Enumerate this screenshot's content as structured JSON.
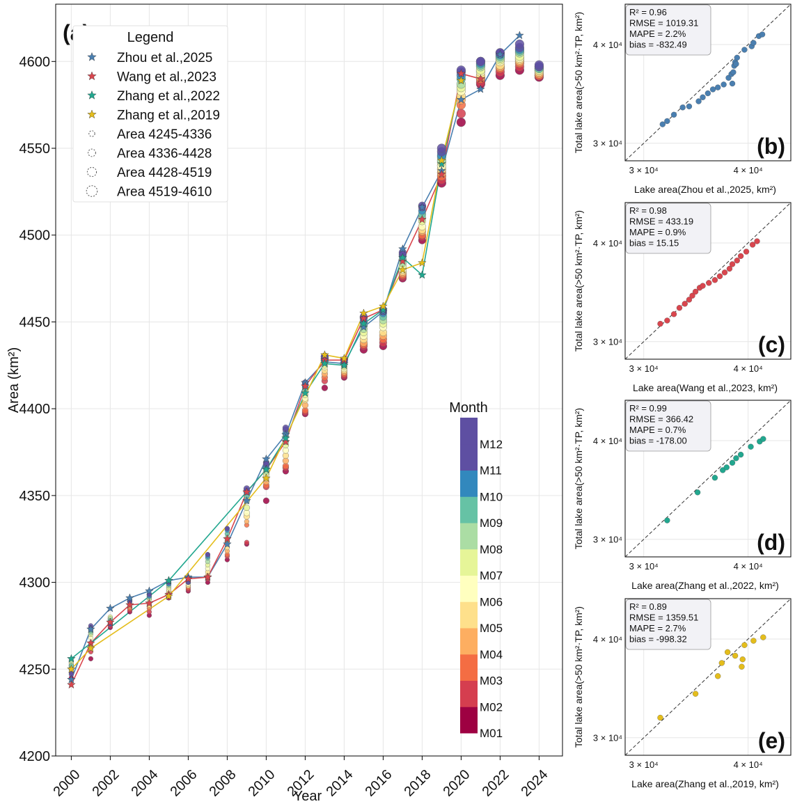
{
  "colors": {
    "zhou2025": "#4a7fb0",
    "wang2023": "#d9464e",
    "zhang2022": "#22a78f",
    "zhang2019": "#e4bd1c",
    "grid": "#e6e6e6",
    "month_colormap": [
      "#9e0142",
      "#d53e4f",
      "#f46d43",
      "#fdae61",
      "#fee08b",
      "#ffffbf",
      "#e6f598",
      "#abdda4",
      "#66c2a5",
      "#3288bd",
      "#5e4fa2",
      "#5e4fa2"
    ]
  },
  "main_panel": {
    "tag": "(a)",
    "xlabel": "Year",
    "ylabel": "Area (km²)",
    "legend": {
      "title": "Legend",
      "entries": [
        {
          "label": "Zhou et al.,2025",
          "marker": "star",
          "color_key": "zhou2025"
        },
        {
          "label": "Wang et al.,2023",
          "marker": "star",
          "color_key": "wang2023"
        },
        {
          "label": "Zhang et al.,2022",
          "marker": "star",
          "color_key": "zhang2022"
        },
        {
          "label": "Zhang et al.,2019",
          "marker": "star",
          "color_key": "zhang2019"
        },
        {
          "label": "Area 4245-4336",
          "marker": "circle-dashed",
          "size": 1
        },
        {
          "label": "Area 4336-4428",
          "marker": "circle-dashed",
          "size": 2
        },
        {
          "label": "Area 4428-4519",
          "marker": "circle-dashed",
          "size": 3
        },
        {
          "label": "Area 4519-4610",
          "marker": "circle-dashed",
          "size": 4
        }
      ]
    },
    "colorbar": {
      "title": "Month",
      "labels": [
        "M01",
        "M02",
        "M03",
        "M04",
        "M05",
        "M06",
        "M07",
        "M08",
        "M09",
        "M10",
        "M11",
        "M12"
      ]
    }
  },
  "chart_data": [
    {
      "type": "line",
      "panel": "(a)",
      "xlabel": "Year",
      "ylabel": "Area (km²)",
      "xlim": [
        1999.2,
        2025.2
      ],
      "ylim": [
        4200,
        4633
      ],
      "xticks": [
        2000,
        2002,
        2004,
        2006,
        2008,
        2010,
        2012,
        2014,
        2016,
        2018,
        2020,
        2022,
        2024
      ],
      "yticks": [
        4200,
        4250,
        4300,
        4350,
        4400,
        4450,
        4500,
        4550,
        4600
      ],
      "grid": true,
      "legend_position": "top-left",
      "series": [
        {
          "name": "Zhou et al.,2025",
          "color_key": "zhou2025",
          "x": [
            2000,
            2001,
            2002,
            2003,
            2004,
            2005,
            2006,
            2007,
            2008,
            2009,
            2010,
            2011,
            2012,
            2013,
            2014,
            2015,
            2016,
            2017,
            2018,
            2019,
            2020,
            2021,
            2022,
            2023
          ],
          "y": [
            4244,
            4273,
            4285,
            4291,
            4295,
            4301,
            4303,
            4303,
            4322,
            4347,
            4371,
            4385,
            4415,
            4427,
            4426,
            4447,
            4456,
            4492,
            4516,
            4537,
            4578,
            4584,
            4604,
            4615
          ]
        },
        {
          "name": "Wang et al.,2023",
          "color_key": "wang2023",
          "x": [
            2000,
            2001,
            2002,
            2003,
            2004,
            2005,
            2006,
            2007,
            2008,
            2009,
            2010,
            2011,
            2012,
            2013,
            2014,
            2015,
            2016,
            2017,
            2018,
            2019,
            2020,
            2021
          ],
          "y": [
            4241,
            4265,
            4277,
            4287,
            4288,
            4293,
            4302,
            4303,
            4325,
            4352,
            4365,
            4381,
            4413,
            4428,
            4428,
            4452,
            4457,
            4485,
            4509,
            4535,
            4593,
            4590
          ]
        },
        {
          "name": "Zhang et al.,2022",
          "color_key": "zhang2022",
          "x": [
            2000,
            2005,
            2010,
            2011,
            2012,
            2013,
            2014,
            2015,
            2016,
            2017,
            2018,
            2019,
            2020
          ],
          "y": [
            4256,
            4301,
            4365,
            4383,
            4409,
            4426,
            4425,
            4449,
            4457,
            4487,
            4477,
            4541,
            4589
          ]
        },
        {
          "name": "Zhang et al.,2019",
          "color_key": "zhang2019",
          "x": [
            2000,
            2001,
            2005,
            2010,
            2013,
            2014,
            2015,
            2016,
            2017,
            2018,
            2019,
            2020
          ],
          "y": [
            4250,
            4262,
            4292,
            4360,
            4431,
            4429,
            4455,
            4459,
            4480,
            4484,
            4543,
            4589
          ]
        }
      ],
      "monthly_points": [
        {
          "x": 2000,
          "y": [
            4245,
            4248,
            4250,
            4251,
            4252,
            4253,
            4254,
            4255,
            4252,
            4250,
            4248,
            4247
          ]
        },
        {
          "x": 2001,
          "y": [
            4256,
            4260,
            4262,
            4263,
            4265,
            4268,
            4270,
            4271,
            4272,
            4273,
            4274,
            4275
          ]
        },
        {
          "x": 2002,
          "y": [
            4274,
            4275,
            4276,
            4277,
            4278,
            4279,
            4280,
            4279,
            4278,
            4277,
            4276,
            4276
          ]
        },
        {
          "x": 2003,
          "y": [
            4283,
            4284,
            4285,
            4286,
            4287,
            4288,
            4289,
            4289,
            4290,
            4290,
            4289,
            4289
          ]
        },
        {
          "x": 2004,
          "y": [
            4281,
            4283,
            4285,
            4286,
            4287,
            4288,
            4290,
            4291,
            4292,
            4292,
            4293,
            4293
          ]
        },
        {
          "x": 2005,
          "y": [
            4291,
            4292,
            4293,
            4294,
            4295,
            4296,
            4297,
            4298,
            4299,
            4299,
            4300,
            4300
          ]
        },
        {
          "x": 2006,
          "y": [
            4295,
            4296,
            4297,
            4298,
            4298,
            4299,
            4300,
            4300,
            4300,
            4300,
            4300,
            4301
          ]
        },
        {
          "x": 2007,
          "y": [
            4300,
            4302,
            4303,
            4304,
            4306,
            4308,
            4310,
            4312,
            4314,
            4315,
            4316,
            4316
          ]
        },
        {
          "x": 2008,
          "y": [
            4313,
            4315,
            4316,
            4318,
            4320,
            4322,
            4324,
            4326,
            4328,
            4330,
            4331,
            4331
          ]
        },
        {
          "x": 2009,
          "y": [
            4322,
            4323,
            4333,
            4335,
            4338,
            4340,
            4343,
            4347,
            4350,
            4352,
            4353,
            4354
          ]
        },
        {
          "x": 2010,
          "y": [
            4347,
            4355,
            4356,
            4358,
            4360,
            4362,
            4363,
            4364,
            4366,
            4367,
            4368,
            4369
          ]
        },
        {
          "x": 2011,
          "y": [
            4364,
            4366,
            4367,
            4370,
            4373,
            4376,
            4379,
            4381,
            4384,
            4386,
            4388,
            4389
          ]
        },
        {
          "x": 2012,
          "y": [
            4397,
            4398,
            4399,
            4402,
            4405,
            4406,
            4408,
            4410,
            4412,
            4413,
            4414,
            4415
          ]
        },
        {
          "x": 2013,
          "y": [
            4412,
            4416,
            4418,
            4420,
            4422,
            4424,
            4425,
            4427,
            4428,
            4429,
            4430,
            4430
          ]
        },
        {
          "x": 2014,
          "y": [
            4418,
            4419,
            4420,
            4421,
            4422,
            4423,
            4424,
            4425,
            4426,
            4427,
            4427,
            4428
          ]
        },
        {
          "x": 2015,
          "y": [
            4434,
            4436,
            4437,
            4438,
            4440,
            4442,
            4444,
            4446,
            4448,
            4450,
            4452,
            4453
          ]
        },
        {
          "x": 2016,
          "y": [
            4436,
            4438,
            4440,
            4442,
            4444,
            4447,
            4449,
            4451,
            4453,
            4455,
            4456,
            4457
          ]
        },
        {
          "x": 2017,
          "y": [
            4475,
            4476,
            4477,
            4478,
            4479,
            4480,
            4482,
            4484,
            4486,
            4488,
            4489,
            4490
          ]
        },
        {
          "x": 2018,
          "y": [
            4497,
            4499,
            4500,
            4502,
            4503,
            4505,
            4508,
            4510,
            4512,
            4514,
            4516,
            4517
          ]
        },
        {
          "x": 2019,
          "y": [
            4530,
            4532,
            4534,
            4536,
            4538,
            4540,
            4542,
            4543,
            4545,
            4546,
            4548,
            4550
          ]
        },
        {
          "x": 2020,
          "y": [
            4565,
            4570,
            4575,
            4578,
            4580,
            4583,
            4585,
            4587,
            4590,
            4592,
            4594,
            4595
          ]
        },
        {
          "x": 2021,
          "y": [
            4587,
            4588,
            4590,
            4591,
            4592,
            4594,
            4595,
            4597,
            4598,
            4599,
            4600,
            4600
          ]
        },
        {
          "x": 2022,
          "y": [
            4592,
            4594,
            4596,
            4597,
            4598,
            4600,
            4601,
            4602,
            4603,
            4604,
            4605,
            4605
          ]
        },
        {
          "x": 2023,
          "y": [
            4595,
            4597,
            4599,
            4600,
            4601,
            4602,
            4603,
            4605,
            4606,
            4607,
            4608,
            4610
          ]
        },
        {
          "x": 2024,
          "y": [
            4591,
            4592,
            4592,
            4593,
            4594,
            4595,
            4595,
            4596,
            4596,
            4597,
            4597,
            4598
          ]
        }
      ]
    },
    {
      "type": "scatter",
      "panel": "(b)",
      "color_key": "zhou2025",
      "xlabel": "Lake area(Zhou et al.,2025, km²)",
      "ylabel": "Total lake area(>50 km²·TP, km²)",
      "tick_labels": [
        "3 × 10⁴",
        "4 × 10⁴"
      ],
      "stats": [
        "R² = 0.96",
        "RMSE = 1019.31",
        "MAPE = 2.2%",
        "bias = -832.49"
      ],
      "points": [
        [
          31600,
          31700
        ],
        [
          32000,
          32000
        ],
        [
          32600,
          32600
        ],
        [
          33400,
          33300
        ],
        [
          34000,
          33400
        ],
        [
          34900,
          33900
        ],
        [
          35300,
          34300
        ],
        [
          35800,
          34700
        ],
        [
          36300,
          35100
        ],
        [
          36800,
          35300
        ],
        [
          37400,
          35600
        ],
        [
          37900,
          36300
        ],
        [
          38200,
          36700
        ],
        [
          38400,
          36900
        ],
        [
          38500,
          37600
        ],
        [
          38600,
          38000
        ],
        [
          38800,
          38500
        ],
        [
          39600,
          39400
        ],
        [
          40400,
          39800
        ],
        [
          40600,
          40200
        ],
        [
          41200,
          41000
        ],
        [
          41600,
          41200
        ],
        [
          38700,
          37800
        ],
        [
          38300,
          35700
        ]
      ]
    },
    {
      "type": "scatter",
      "panel": "(c)",
      "color_key": "wang2023",
      "xlabel": "Lake area(Wang et al.,2023, km²)",
      "ylabel": "Total lake area(>50 km²·TP, km²)",
      "tick_labels": [
        "3 × 10⁴",
        "4 × 10⁴"
      ],
      "stats": [
        "R² = 0.98",
        "RMSE = 433.19",
        "MAPE = 0.9%",
        "bias = 15.15"
      ],
      "points": [
        [
          31400,
          31600
        ],
        [
          32000,
          31900
        ],
        [
          32600,
          32500
        ],
        [
          33100,
          33100
        ],
        [
          33600,
          33500
        ],
        [
          34000,
          33900
        ],
        [
          34300,
          34300
        ],
        [
          34600,
          34700
        ],
        [
          35000,
          35100
        ],
        [
          35300,
          35300
        ],
        [
          35900,
          35600
        ],
        [
          36500,
          35900
        ],
        [
          37000,
          36300
        ],
        [
          37500,
          36700
        ],
        [
          38000,
          37100
        ],
        [
          38300,
          37600
        ],
        [
          38800,
          38000
        ],
        [
          39200,
          38500
        ],
        [
          39800,
          39000
        ],
        [
          40500,
          39800
        ],
        [
          41000,
          40200
        ]
      ]
    },
    {
      "type": "scatter",
      "panel": "(d)",
      "color_key": "zhang2022",
      "xlabel": "Lake area(Zhang et al.,2022, km²)",
      "ylabel": "Total lake area(>50 km²·TP, km²)",
      "tick_labels": [
        "3 × 10⁴",
        "4 × 10⁴"
      ],
      "stats": [
        "R² = 0.99",
        "RMSE = 366.42",
        "MAPE = 0.7%",
        "bias = -178.00"
      ],
      "points": [
        [
          32000,
          31700
        ],
        [
          34800,
          34400
        ],
        [
          36500,
          35900
        ],
        [
          37300,
          36700
        ],
        [
          37700,
          37000
        ],
        [
          38300,
          37500
        ],
        [
          38700,
          38000
        ],
        [
          39200,
          38400
        ],
        [
          40300,
          39300
        ],
        [
          41300,
          39900
        ],
        [
          41700,
          40200
        ]
      ]
    },
    {
      "type": "scatter",
      "panel": "(e)",
      "color_key": "zhang2019",
      "xlabel": "Lake area(Zhang et al.,2019, km²)",
      "ylabel": "Total lake area(>50 km²·TP, km²)",
      "tick_labels": [
        "3 × 10⁴",
        "4 × 10⁴"
      ],
      "stats": [
        "R² = 0.89",
        "RMSE = 1359.51",
        "MAPE = 2.7%",
        "bias = -998.32"
      ],
      "points": [
        [
          31400,
          31800
        ],
        [
          34600,
          34100
        ],
        [
          36800,
          35900
        ],
        [
          37200,
          37300
        ],
        [
          37800,
          38500
        ],
        [
          38600,
          38100
        ],
        [
          39400,
          37700
        ],
        [
          39300,
          36900
        ],
        [
          39600,
          39300
        ],
        [
          40600,
          39800
        ],
        [
          41700,
          40200
        ]
      ]
    }
  ]
}
